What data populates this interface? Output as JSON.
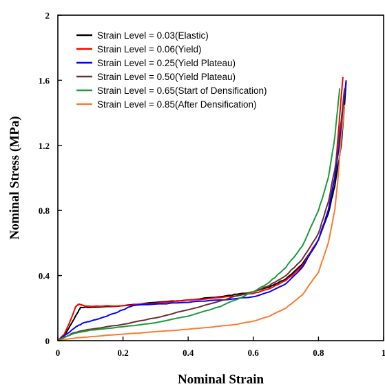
{
  "chart_data": {
    "type": "line",
    "xlabel": "Nominal Strain",
    "ylabel": "Nominal Stress (MPa)",
    "xlim": [
      0,
      1
    ],
    "ylim": [
      0,
      2
    ],
    "x_ticks": [
      "0",
      "0.2",
      "0.4",
      "0.6",
      "0.8",
      "1"
    ],
    "y_ticks": [
      "0",
      "0.4",
      "0.8",
      "1.2",
      "1.6",
      "2"
    ],
    "grid": false,
    "legend_position": "top-left",
    "series": [
      {
        "name": "Strain Level = 0.03(Elastic)",
        "color": "#000000",
        "points": [
          [
            0,
            0
          ],
          [
            0.02,
            0.03
          ],
          [
            0.04,
            0.1
          ],
          [
            0.06,
            0.17
          ],
          [
            0.07,
            0.205
          ],
          [
            0.1,
            0.205
          ],
          [
            0.2,
            0.215
          ],
          [
            0.3,
            0.235
          ],
          [
            0.4,
            0.25
          ],
          [
            0.5,
            0.27
          ],
          [
            0.55,
            0.285
          ],
          [
            0.6,
            0.3
          ],
          [
            0.65,
            0.33
          ],
          [
            0.7,
            0.38
          ],
          [
            0.75,
            0.47
          ],
          [
            0.8,
            0.62
          ],
          [
            0.83,
            0.78
          ],
          [
            0.85,
            0.95
          ],
          [
            0.87,
            1.2
          ],
          [
            0.88,
            1.45
          ],
          [
            0.885,
            1.6
          ]
        ]
      },
      {
        "name": "Strain Level = 0.06(Yield)",
        "color": "#ff0000",
        "points": [
          [
            0,
            0
          ],
          [
            0.02,
            0.04
          ],
          [
            0.04,
            0.13
          ],
          [
            0.055,
            0.21
          ],
          [
            0.065,
            0.225
          ],
          [
            0.08,
            0.215
          ],
          [
            0.1,
            0.21
          ],
          [
            0.2,
            0.215
          ],
          [
            0.3,
            0.23
          ],
          [
            0.4,
            0.25
          ],
          [
            0.5,
            0.265
          ],
          [
            0.6,
            0.29
          ],
          [
            0.65,
            0.32
          ],
          [
            0.7,
            0.37
          ],
          [
            0.75,
            0.46
          ],
          [
            0.8,
            0.62
          ],
          [
            0.83,
            0.8
          ],
          [
            0.85,
            1.0
          ],
          [
            0.86,
            1.25
          ],
          [
            0.87,
            1.5
          ],
          [
            0.875,
            1.62
          ]
        ]
      },
      {
        "name": "Strain Level = 0.25(Yield Plateau)",
        "color": "#0000ff",
        "points": [
          [
            0,
            0
          ],
          [
            0.02,
            0.03
          ],
          [
            0.04,
            0.06
          ],
          [
            0.06,
            0.09
          ],
          [
            0.08,
            0.11
          ],
          [
            0.1,
            0.12
          ],
          [
            0.15,
            0.15
          ],
          [
            0.2,
            0.19
          ],
          [
            0.23,
            0.215
          ],
          [
            0.3,
            0.225
          ],
          [
            0.4,
            0.235
          ],
          [
            0.5,
            0.25
          ],
          [
            0.6,
            0.27
          ],
          [
            0.65,
            0.3
          ],
          [
            0.7,
            0.35
          ],
          [
            0.75,
            0.45
          ],
          [
            0.8,
            0.62
          ],
          [
            0.83,
            0.8
          ],
          [
            0.85,
            1.0
          ],
          [
            0.87,
            1.3
          ],
          [
            0.88,
            1.5
          ],
          [
            0.885,
            1.6
          ]
        ]
      },
      {
        "name": "Strain Level = 0.50(Yield Plateau)",
        "color": "#6b3030",
        "points": [
          [
            0,
            0
          ],
          [
            0.02,
            0.02
          ],
          [
            0.05,
            0.05
          ],
          [
            0.1,
            0.07
          ],
          [
            0.2,
            0.1
          ],
          [
            0.3,
            0.14
          ],
          [
            0.4,
            0.19
          ],
          [
            0.5,
            0.245
          ],
          [
            0.55,
            0.275
          ],
          [
            0.6,
            0.3
          ],
          [
            0.65,
            0.34
          ],
          [
            0.7,
            0.4
          ],
          [
            0.75,
            0.5
          ],
          [
            0.8,
            0.66
          ],
          [
            0.83,
            0.85
          ],
          [
            0.85,
            1.05
          ],
          [
            0.87,
            1.35
          ],
          [
            0.88,
            1.55
          ]
        ]
      },
      {
        "name": "Strain Level = 0.65(Start of Densification)",
        "color": "#1a9b3a",
        "points": [
          [
            0,
            0
          ],
          [
            0.02,
            0.02
          ],
          [
            0.05,
            0.045
          ],
          [
            0.1,
            0.065
          ],
          [
            0.2,
            0.085
          ],
          [
            0.3,
            0.11
          ],
          [
            0.4,
            0.15
          ],
          [
            0.5,
            0.21
          ],
          [
            0.6,
            0.3
          ],
          [
            0.65,
            0.36
          ],
          [
            0.7,
            0.45
          ],
          [
            0.75,
            0.58
          ],
          [
            0.8,
            0.8
          ],
          [
            0.83,
            1.0
          ],
          [
            0.85,
            1.25
          ],
          [
            0.86,
            1.45
          ],
          [
            0.865,
            1.55
          ]
        ]
      },
      {
        "name": "Strain Level = 0.85(After Densification)",
        "color": "#ff7a2e",
        "points": [
          [
            0,
            0
          ],
          [
            0.05,
            0.015
          ],
          [
            0.1,
            0.025
          ],
          [
            0.2,
            0.04
          ],
          [
            0.3,
            0.055
          ],
          [
            0.4,
            0.07
          ],
          [
            0.5,
            0.09
          ],
          [
            0.55,
            0.1
          ],
          [
            0.6,
            0.12
          ],
          [
            0.65,
            0.15
          ],
          [
            0.7,
            0.2
          ],
          [
            0.75,
            0.28
          ],
          [
            0.8,
            0.42
          ],
          [
            0.83,
            0.6
          ],
          [
            0.85,
            0.8
          ],
          [
            0.86,
            1.0
          ],
          [
            0.87,
            1.25
          ],
          [
            0.88,
            1.45
          ]
        ]
      }
    ]
  }
}
